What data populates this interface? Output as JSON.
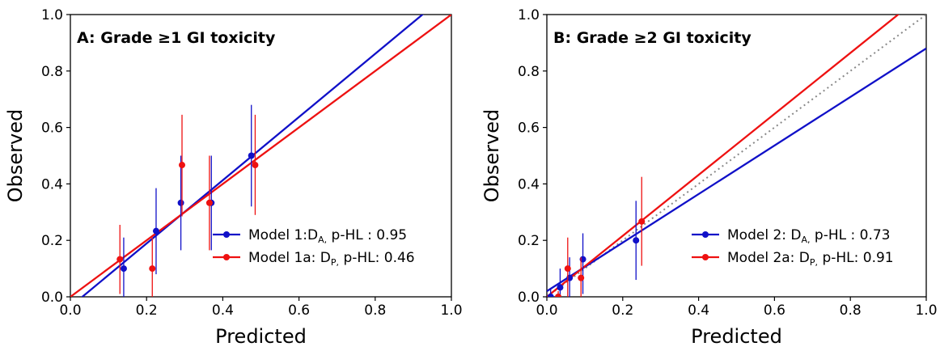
{
  "colors": {
    "model_da": "#1010c8",
    "model_dp": "#ee1111",
    "reference": "#888888"
  },
  "chart_data": [
    {
      "type": "scatter",
      "panel": "A",
      "title": "A:  Grade ≥1 GI toxicity",
      "xlabel": "Predicted",
      "ylabel": "Observed",
      "xlim": [
        0,
        1
      ],
      "ylim": [
        0,
        1
      ],
      "x_ticks": [
        "0.0",
        "0.2",
        "0.4",
        "0.6",
        "0.8",
        "1.0"
      ],
      "y_ticks": [
        "0.0",
        "0.2",
        "0.4",
        "0.6",
        "0.8",
        "1.0"
      ],
      "grid": false,
      "legend_position": "lower-right",
      "reference_line": {
        "style": "dotted",
        "from": [
          0,
          0
        ],
        "to": [
          1,
          1
        ]
      },
      "series": [
        {
          "legend": {
            "main": "Model 1:D",
            "sub": "A,",
            "rest": " p-HL : 0.95"
          },
          "color": "#1010c8",
          "points": [
            {
              "x": 0.14,
              "y": 0.1,
              "lo": 0.0,
              "hi": 0.21
            },
            {
              "x": 0.225,
              "y": 0.233,
              "lo": 0.08,
              "hi": 0.385
            },
            {
              "x": 0.29,
              "y": 0.333,
              "lo": 0.165,
              "hi": 0.5
            },
            {
              "x": 0.37,
              "y": 0.333,
              "lo": 0.165,
              "hi": 0.5
            },
            {
              "x": 0.475,
              "y": 0.5,
              "lo": 0.32,
              "hi": 0.68
            }
          ],
          "fit_line": {
            "intercept": -0.035,
            "slope": 1.12
          }
        },
        {
          "legend": {
            "main": "Model 1a: D",
            "sub": "P,",
            "rest": " p-HL:  0.46"
          },
          "color": "#ee1111",
          "points": [
            {
              "x": 0.13,
              "y": 0.133,
              "lo": 0.01,
              "hi": 0.255
            },
            {
              "x": 0.215,
              "y": 0.1,
              "lo": 0.0,
              "hi": 0.21
            },
            {
              "x": 0.293,
              "y": 0.467,
              "lo": 0.285,
              "hi": 0.645
            },
            {
              "x": 0.365,
              "y": 0.333,
              "lo": 0.165,
              "hi": 0.5
            },
            {
              "x": 0.485,
              "y": 0.467,
              "lo": 0.29,
              "hi": 0.645
            }
          ],
          "fit_line": {
            "intercept": 0.0,
            "slope": 1.0
          }
        }
      ]
    },
    {
      "type": "scatter",
      "panel": "B",
      "title": "B:  Grade ≥2 GI toxicity",
      "xlabel": "Predicted",
      "ylabel": "Observed",
      "xlim": [
        0,
        1
      ],
      "ylim": [
        0,
        1
      ],
      "x_ticks": [
        "0.0",
        "0.2",
        "0.4",
        "0.6",
        "0.8",
        "1.0"
      ],
      "y_ticks": [
        "0.0",
        "0.2",
        "0.4",
        "0.6",
        "0.8",
        "1.0"
      ],
      "grid": false,
      "legend_position": "lower-right",
      "reference_line": {
        "style": "dotted",
        "from": [
          0,
          0
        ],
        "to": [
          1,
          1
        ]
      },
      "series": [
        {
          "legend": {
            "main": "Model 2: D",
            "sub": "A,",
            "rest": " p-HL : 0.73"
          },
          "color": "#1010c8",
          "points": [
            {
              "x": 0.01,
              "y": 0.0,
              "lo": 0.0,
              "hi": 0.03
            },
            {
              "x": 0.035,
              "y": 0.033,
              "lo": 0.0,
              "hi": 0.1
            },
            {
              "x": 0.06,
              "y": 0.067,
              "lo": 0.0,
              "hi": 0.14
            },
            {
              "x": 0.095,
              "y": 0.133,
              "lo": 0.01,
              "hi": 0.225
            },
            {
              "x": 0.235,
              "y": 0.2,
              "lo": 0.06,
              "hi": 0.34
            }
          ],
          "fit_line": {
            "intercept": 0.02,
            "slope": 0.86
          }
        },
        {
          "legend": {
            "main": "Model 2a: D",
            "sub": "P,",
            "rest": " p-HL:   0.91"
          },
          "color": "#ee1111",
          "points": [
            {
              "x": 0.03,
              "y": 0.0,
              "lo": 0.0,
              "hi": 0.02
            },
            {
              "x": 0.055,
              "y": 0.1,
              "lo": 0.0,
              "hi": 0.21
            },
            {
              "x": 0.09,
              "y": 0.067,
              "lo": 0.0,
              "hi": 0.14
            },
            {
              "x": 0.25,
              "y": 0.267,
              "lo": 0.11,
              "hi": 0.425
            }
          ],
          "fit_line": {
            "intercept": 0.0,
            "slope": 1.08
          }
        }
      ]
    }
  ]
}
